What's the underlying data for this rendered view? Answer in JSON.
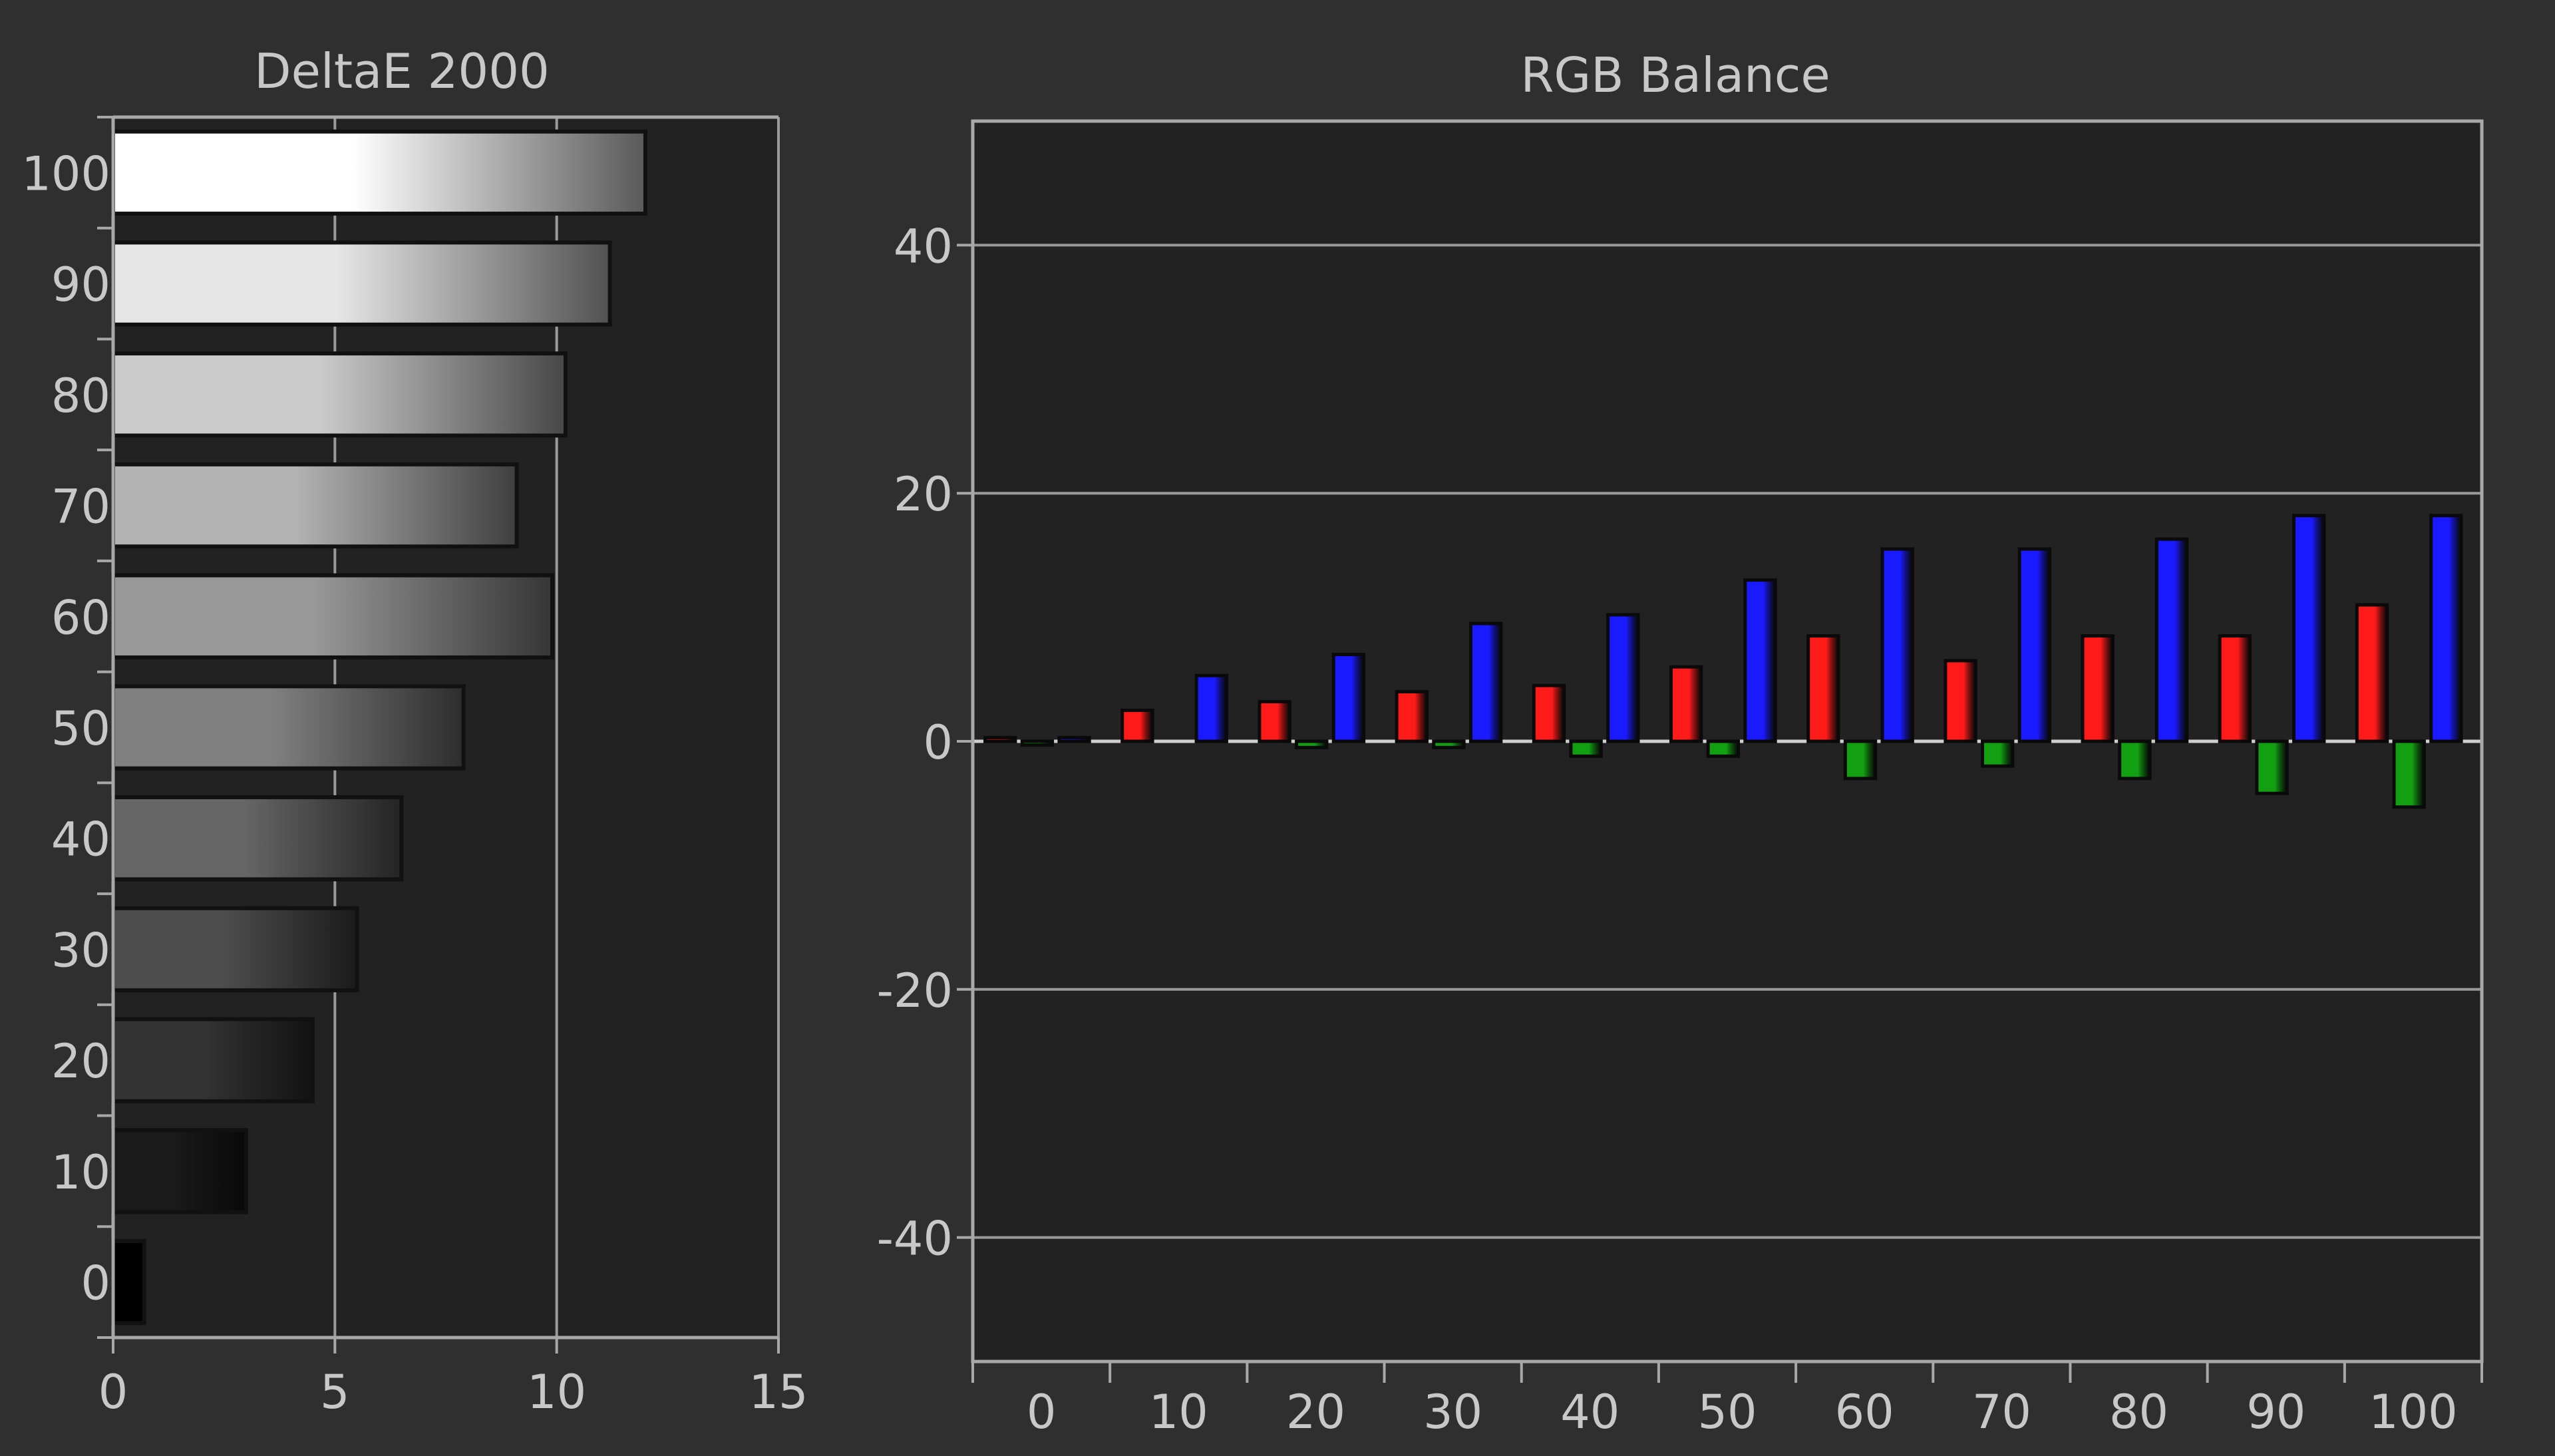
{
  "colors": {
    "page_bg": "#2f2f2f",
    "plot_bg": "#222222",
    "axis": "#a8a8a8",
    "grid": "#9a9a9a",
    "text": "#c8c8c8",
    "red": "#ff1a1a",
    "green": "#12a012",
    "blue": "#1a1aff"
  },
  "chart_data": [
    {
      "type": "bar",
      "orientation": "horizontal",
      "title": "DeltaE 2000",
      "xlabel": "",
      "ylabel": "",
      "categories": [
        "0",
        "10",
        "20",
        "30",
        "40",
        "50",
        "60",
        "70",
        "80",
        "90",
        "100"
      ],
      "values": [
        0.7,
        3.0,
        4.5,
        5.5,
        6.5,
        7.9,
        9.9,
        9.1,
        10.2,
        11.2,
        12.0
      ],
      "xlim": [
        0,
        15
      ],
      "xticks": [
        "0",
        "5",
        "10",
        "15"
      ],
      "grid": true,
      "fill": "grayscale gradient by category brightness"
    },
    {
      "type": "bar",
      "title": "RGB Balance",
      "xlabel": "",
      "ylabel": "",
      "categories": [
        "0",
        "10",
        "20",
        "30",
        "40",
        "50",
        "60",
        "70",
        "80",
        "90",
        "100"
      ],
      "ylim": [
        -50,
        50
      ],
      "yticks": [
        "40",
        "20",
        "0",
        "-20",
        "-40"
      ],
      "grid": true,
      "series": [
        {
          "color": "#ff1a1a",
          "values": [
            0.3,
            2.5,
            3.2,
            4.0,
            4.5,
            6.0,
            8.5,
            6.5,
            8.5,
            8.5,
            11.0
          ]
        },
        {
          "color": "#12a012",
          "values": [
            -0.3,
            0,
            -0.5,
            -0.5,
            -1.2,
            -1.2,
            -3.0,
            -2.0,
            -3.0,
            -4.2,
            -5.3
          ]
        },
        {
          "color": "#1a1aff",
          "values": [
            0.3,
            5.3,
            7.0,
            9.5,
            10.2,
            13.0,
            15.5,
            15.5,
            16.3,
            18.2,
            18.2
          ]
        }
      ]
    }
  ]
}
